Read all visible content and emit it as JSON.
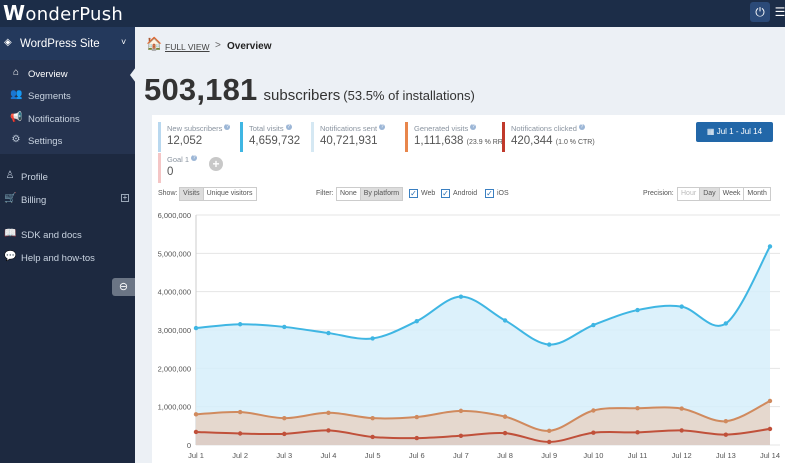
{
  "app": {
    "logo_initial": "W",
    "logo_rest": "onderPush"
  },
  "sidebar": {
    "site_name": "WordPress Site",
    "sub_items": [
      {
        "label": "Overview",
        "icon": "home-icon"
      },
      {
        "label": "Segments",
        "icon": "users-icon"
      },
      {
        "label": "Notifications",
        "icon": "bullhorn-icon"
      },
      {
        "label": "Settings",
        "icon": "gears-icon"
      }
    ],
    "main_items": [
      {
        "label": "Profile",
        "icon": "person-icon"
      },
      {
        "label": "Billing",
        "icon": "cart-icon"
      },
      {
        "label": "SDK and docs",
        "icon": "book-icon"
      },
      {
        "label": "Help and how-tos",
        "icon": "comments-icon"
      }
    ]
  },
  "breadcrumb": {
    "full_view": "FULL VIEW",
    "separator": ">",
    "current": "Overview"
  },
  "headline": {
    "number": "503,181",
    "word": "subscribers",
    "detail": "(53.5% of installations)"
  },
  "stats": [
    {
      "title": "New subscribers",
      "value": "12,052",
      "extra": "",
      "color": "#b9d8ef"
    },
    {
      "title": "Total visits",
      "value": "4,659,732",
      "extra": "",
      "color": "#3fb6e3"
    },
    {
      "title": "Notifications sent",
      "value": "40,721,931",
      "extra": "",
      "color": "#d5e8f3"
    },
    {
      "title": "Generated visits",
      "value": "1,111,638",
      "extra": "(23.9 % RR)",
      "color": "#e8864c"
    },
    {
      "title": "Notifications clicked",
      "value": "420,344",
      "extra": "(1.0 % CTR)",
      "color": "#c0392b"
    },
    {
      "title": "Goal 1",
      "value": "0",
      "extra": "",
      "color": "#f4c6c6"
    }
  ],
  "date_range": "Jul 1 - Jul 14",
  "controls": {
    "show_label": "Show:",
    "show_options": [
      "Visits",
      "Unique visitors"
    ],
    "filter_label": "Filter:",
    "filter_options": [
      "None",
      "By platform"
    ],
    "platforms": [
      "Web",
      "Android",
      "iOS"
    ],
    "precision_label": "Precision:",
    "precision_options": [
      "Hour",
      "Day",
      "Week",
      "Month"
    ]
  },
  "chart_data": {
    "type": "area",
    "categories": [
      "Jul 1",
      "Jul 2",
      "Jul 3",
      "Jul 4",
      "Jul 5",
      "Jul 6",
      "Jul 7",
      "Jul 8",
      "Jul 9",
      "Jul 10",
      "Jul 11",
      "Jul 12",
      "Jul 13",
      "Jul 14"
    ],
    "ylim": [
      0,
      6000000
    ],
    "yticks": [
      "0",
      "1,000,000",
      "2,000,000",
      "3,000,000",
      "4,000,000",
      "5,000,000",
      "6,000,000"
    ],
    "grid": true,
    "series": [
      {
        "values": [
          3050000,
          3150000,
          3080000,
          2920000,
          2780000,
          3230000,
          3870000,
          3250000,
          2620000,
          3130000,
          3520000,
          3610000,
          3170000,
          5180000
        ],
        "color": "#3fb6e3",
        "fill": "#d6effa"
      },
      {
        "values": [
          800000,
          860000,
          700000,
          840000,
          700000,
          730000,
          890000,
          740000,
          370000,
          900000,
          960000,
          950000,
          620000,
          1150000
        ],
        "color": "#d08a5e",
        "fill": "#e6d3c6"
      },
      {
        "values": [
          340000,
          300000,
          290000,
          380000,
          210000,
          180000,
          240000,
          310000,
          80000,
          320000,
          330000,
          380000,
          270000,
          420000
        ],
        "color": "#c0503a",
        "fill": "#dccdc6"
      }
    ]
  }
}
